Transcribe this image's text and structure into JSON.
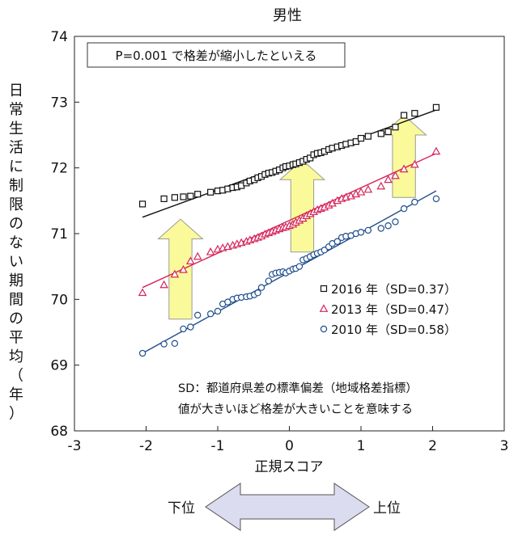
{
  "chart_data": {
    "type": "scatter",
    "title": "男性",
    "xlabel": "正規スコア",
    "ylabel": "日常生活に制限のない期間の平均（年）",
    "xlim": [
      -3,
      3
    ],
    "ylim": [
      68,
      74
    ],
    "xticks": [
      "-3",
      "-2",
      "-1",
      "0",
      "1",
      "2",
      "3"
    ],
    "yticks": [
      "68",
      "69",
      "70",
      "71",
      "72",
      "73",
      "74"
    ],
    "grid": false,
    "legend_position": "right-middle",
    "annotation_box": "P=0.001 で格差が縮小したといえる",
    "note_lines": [
      "SD：都道府県差の標準偏差（地域格差指標）",
      "値が大きいほど格差が大きいことを意味する"
    ],
    "bottom_arrow": {
      "left_label": "下位",
      "right_label": "上位",
      "fill": "#dcdcf0"
    },
    "series": [
      {
        "name": "2016 年（SD=0.37）",
        "marker": "square",
        "color": "#111111",
        "trend": {
          "x": [
            -2.05,
            2.05
          ],
          "y": [
            71.25,
            72.88
          ]
        },
        "points": [
          [
            -2.05,
            71.45
          ],
          [
            -1.75,
            71.53
          ],
          [
            -1.6,
            71.55
          ],
          [
            -1.48,
            71.56
          ],
          [
            -1.38,
            71.57
          ],
          [
            -1.28,
            71.6
          ],
          [
            -1.1,
            71.63
          ],
          [
            -1.0,
            71.65
          ],
          [
            -0.93,
            71.66
          ],
          [
            -0.86,
            71.68
          ],
          [
            -0.79,
            71.7
          ],
          [
            -0.73,
            71.71
          ],
          [
            -0.67,
            71.73
          ],
          [
            -0.6,
            71.77
          ],
          [
            -0.55,
            71.8
          ],
          [
            -0.49,
            71.82
          ],
          [
            -0.44,
            71.85
          ],
          [
            -0.39,
            71.87
          ],
          [
            -0.34,
            71.9
          ],
          [
            -0.29,
            71.92
          ],
          [
            -0.24,
            71.93
          ],
          [
            -0.19,
            71.95
          ],
          [
            -0.14,
            71.97
          ],
          [
            -0.09,
            72.0
          ],
          [
            -0.05,
            72.02
          ],
          [
            0.0,
            72.03
          ],
          [
            0.05,
            72.05
          ],
          [
            0.09,
            72.06
          ],
          [
            0.14,
            72.08
          ],
          [
            0.19,
            72.1
          ],
          [
            0.24,
            72.13
          ],
          [
            0.29,
            72.15
          ],
          [
            0.34,
            72.2
          ],
          [
            0.39,
            72.22
          ],
          [
            0.44,
            72.23
          ],
          [
            0.49,
            72.25
          ],
          [
            0.55,
            72.28
          ],
          [
            0.6,
            72.3
          ],
          [
            0.67,
            72.32
          ],
          [
            0.73,
            72.34
          ],
          [
            0.79,
            72.36
          ],
          [
            0.86,
            72.38
          ],
          [
            0.93,
            72.4
          ],
          [
            1.0,
            72.45
          ],
          [
            1.1,
            72.48
          ],
          [
            1.28,
            72.52
          ],
          [
            1.38,
            72.55
          ],
          [
            1.48,
            72.62
          ],
          [
            1.6,
            72.8
          ],
          [
            1.75,
            72.83
          ],
          [
            2.05,
            72.92
          ]
        ]
      },
      {
        "name": "2013 年（SD=0.47）",
        "marker": "triangle",
        "color": "#d6245a",
        "trend": {
          "x": [
            -2.05,
            2.05
          ],
          "y": [
            70.18,
            72.22
          ]
        },
        "points": [
          [
            -2.05,
            70.1
          ],
          [
            -1.75,
            70.22
          ],
          [
            -1.6,
            70.38
          ],
          [
            -1.48,
            70.45
          ],
          [
            -1.38,
            70.58
          ],
          [
            -1.28,
            70.65
          ],
          [
            -1.1,
            70.72
          ],
          [
            -1.0,
            70.76
          ],
          [
            -0.93,
            70.78
          ],
          [
            -0.86,
            70.8
          ],
          [
            -0.79,
            70.82
          ],
          [
            -0.73,
            70.84
          ],
          [
            -0.67,
            70.86
          ],
          [
            -0.6,
            70.88
          ],
          [
            -0.55,
            70.9
          ],
          [
            -0.49,
            70.92
          ],
          [
            -0.44,
            70.94
          ],
          [
            -0.39,
            70.96
          ],
          [
            -0.34,
            70.99
          ],
          [
            -0.29,
            71.01
          ],
          [
            -0.24,
            71.03
          ],
          [
            -0.19,
            71.05
          ],
          [
            -0.14,
            71.07
          ],
          [
            -0.09,
            71.09
          ],
          [
            -0.05,
            71.1
          ],
          [
            0.0,
            71.12
          ],
          [
            0.05,
            71.14
          ],
          [
            0.09,
            71.17
          ],
          [
            0.14,
            71.2
          ],
          [
            0.19,
            71.23
          ],
          [
            0.24,
            71.27
          ],
          [
            0.29,
            71.3
          ],
          [
            0.34,
            71.33
          ],
          [
            0.39,
            71.36
          ],
          [
            0.44,
            71.38
          ],
          [
            0.49,
            71.4
          ],
          [
            0.55,
            71.43
          ],
          [
            0.6,
            71.46
          ],
          [
            0.67,
            71.5
          ],
          [
            0.73,
            71.53
          ],
          [
            0.79,
            71.55
          ],
          [
            0.86,
            71.57
          ],
          [
            0.93,
            71.6
          ],
          [
            1.0,
            71.63
          ],
          [
            1.1,
            71.67
          ],
          [
            1.28,
            71.72
          ],
          [
            1.38,
            71.82
          ],
          [
            1.48,
            71.88
          ],
          [
            1.6,
            71.98
          ],
          [
            1.75,
            72.05
          ],
          [
            2.05,
            72.25
          ]
        ]
      },
      {
        "name": "2010 年（SD=0.58）",
        "marker": "circle",
        "color": "#1f4e8c",
        "trend": {
          "x": [
            -2.05,
            2.05
          ],
          "y": [
            69.18,
            71.65
          ]
        },
        "points": [
          [
            -2.05,
            69.18
          ],
          [
            -1.75,
            69.32
          ],
          [
            -1.6,
            69.33
          ],
          [
            -1.48,
            69.55
          ],
          [
            -1.38,
            69.58
          ],
          [
            -1.28,
            69.76
          ],
          [
            -1.1,
            69.78
          ],
          [
            -1.0,
            69.82
          ],
          [
            -0.93,
            69.93
          ],
          [
            -0.86,
            69.96
          ],
          [
            -0.79,
            70.0
          ],
          [
            -0.73,
            70.02
          ],
          [
            -0.67,
            70.03
          ],
          [
            -0.6,
            70.04
          ],
          [
            -0.55,
            70.05
          ],
          [
            -0.49,
            70.07
          ],
          [
            -0.44,
            70.1
          ],
          [
            -0.39,
            70.18
          ],
          [
            -0.29,
            70.28
          ],
          [
            -0.24,
            70.38
          ],
          [
            -0.19,
            70.4
          ],
          [
            -0.14,
            70.41
          ],
          [
            -0.09,
            70.42
          ],
          [
            -0.05,
            70.4
          ],
          [
            0.0,
            70.43
          ],
          [
            0.05,
            70.46
          ],
          [
            0.09,
            70.47
          ],
          [
            0.14,
            70.5
          ],
          [
            0.19,
            70.6
          ],
          [
            0.24,
            70.62
          ],
          [
            0.29,
            70.65
          ],
          [
            0.34,
            70.68
          ],
          [
            0.39,
            70.7
          ],
          [
            0.44,
            70.72
          ],
          [
            0.49,
            70.75
          ],
          [
            0.55,
            70.8
          ],
          [
            0.6,
            70.85
          ],
          [
            0.67,
            70.88
          ],
          [
            0.73,
            70.94
          ],
          [
            0.79,
            70.96
          ],
          [
            0.86,
            70.97
          ],
          [
            0.93,
            71.0
          ],
          [
            1.0,
            71.02
          ],
          [
            1.1,
            71.05
          ],
          [
            1.28,
            71.08
          ],
          [
            1.38,
            71.12
          ],
          [
            1.48,
            71.18
          ],
          [
            1.6,
            71.38
          ],
          [
            1.75,
            71.48
          ],
          [
            2.05,
            71.53
          ]
        ]
      }
    ],
    "big_arrows": {
      "fill": "#fafa9a",
      "stroke": "#999999"
    }
  }
}
